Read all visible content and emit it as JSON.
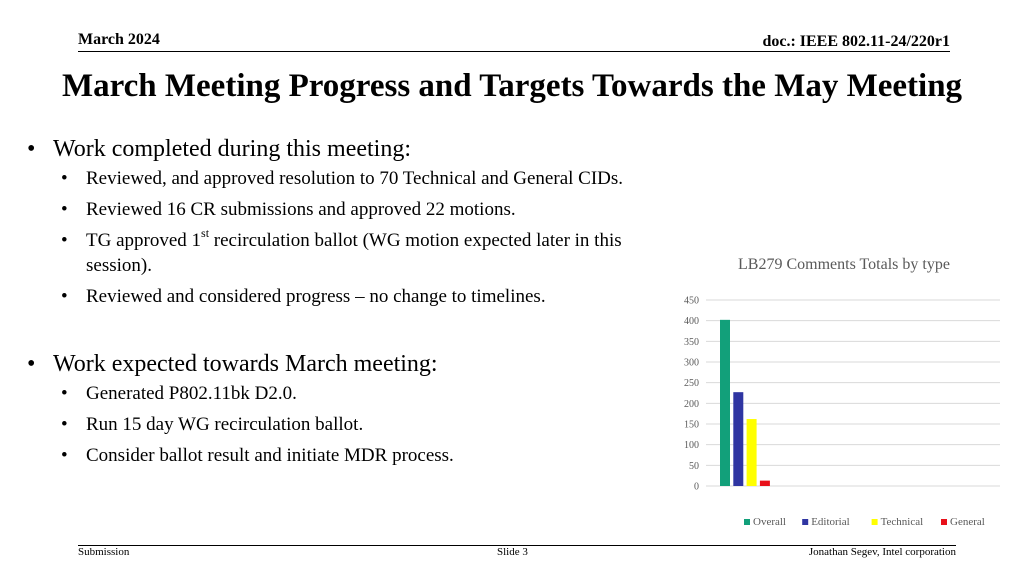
{
  "header": {
    "date": "March 2024",
    "doc": "doc.: IEEE 802.11-24/220r1"
  },
  "title": "March Meeting Progress and Targets Towards the May Meeting",
  "sections": [
    {
      "heading": "Work completed during this meeting:",
      "items": [
        "Reviewed, and approved resolution to 70 Technical and General CIDs.",
        "Reviewed 16 CR submissions and approved 22 motions.",
        {
          "pre": "TG approved 1",
          "sup": "st",
          "post": " recirculation ballot (WG motion expected later in this session)."
        },
        "Reviewed and considered progress – no change to timelines."
      ]
    },
    {
      "heading": "Work expected towards March meeting:",
      "items": [
        "Generated P802.11bk D2.0.",
        "Run 15 day WG recirculation ballot.",
        "Consider ballot result and initiate MDR process."
      ]
    }
  ],
  "chart_data": {
    "type": "bar",
    "title": "LB279 Comments Totals by type",
    "categories": [
      ""
    ],
    "series": [
      {
        "name": "Overall",
        "values": [
          402
        ],
        "color": "#12a07a"
      },
      {
        "name": "Editorial",
        "values": [
          227
        ],
        "color": "#2f35a2"
      },
      {
        "name": "Technical",
        "values": [
          162
        ],
        "color": "#ffff00"
      },
      {
        "name": "General",
        "values": [
          13
        ],
        "color": "#e8101a"
      }
    ],
    "yticks": [
      0,
      50,
      100,
      150,
      200,
      250,
      300,
      350,
      400,
      450
    ],
    "ylim": [
      0,
      450
    ],
    "grid": true,
    "legend": "bottom"
  },
  "footer": {
    "left": "Submission",
    "center": "Slide 3",
    "right": "Jonathan Segev, Intel corporation"
  }
}
